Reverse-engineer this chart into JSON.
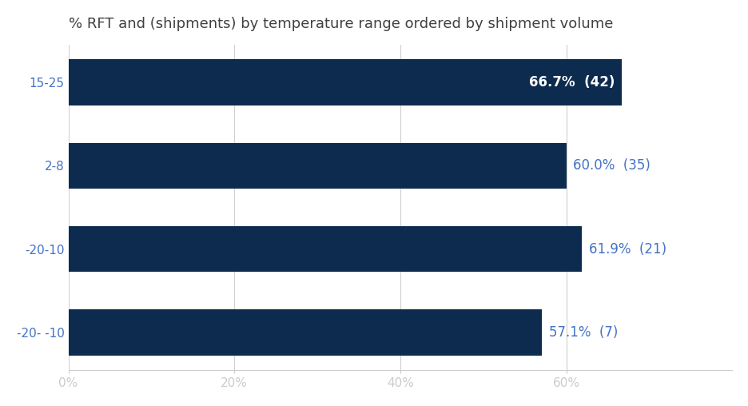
{
  "title": "% RFT and (shipments) by temperature range ordered by shipment volume",
  "categories": [
    "15-25",
    "2-8",
    "-20-10",
    "-20- -10"
  ],
  "values": [
    66.7,
    60.0,
    61.9,
    57.1
  ],
  "shipments": [
    42,
    35,
    21,
    7
  ],
  "bar_color": "#0d2b4e",
  "label_color_inside": "#ffffff",
  "label_color_outside": "#4472c4",
  "title_color": "#404040",
  "ylabel_color": "#4472c4",
  "background_color": "#ffffff",
  "xlim": [
    0,
    80
  ],
  "xticks": [
    0,
    20,
    40,
    60
  ],
  "xtick_labels": [
    "0%",
    "20%",
    "40%",
    "60%"
  ],
  "title_fontsize": 13,
  "tick_fontsize": 11,
  "label_fontsize": 12,
  "bar_height": 0.55
}
